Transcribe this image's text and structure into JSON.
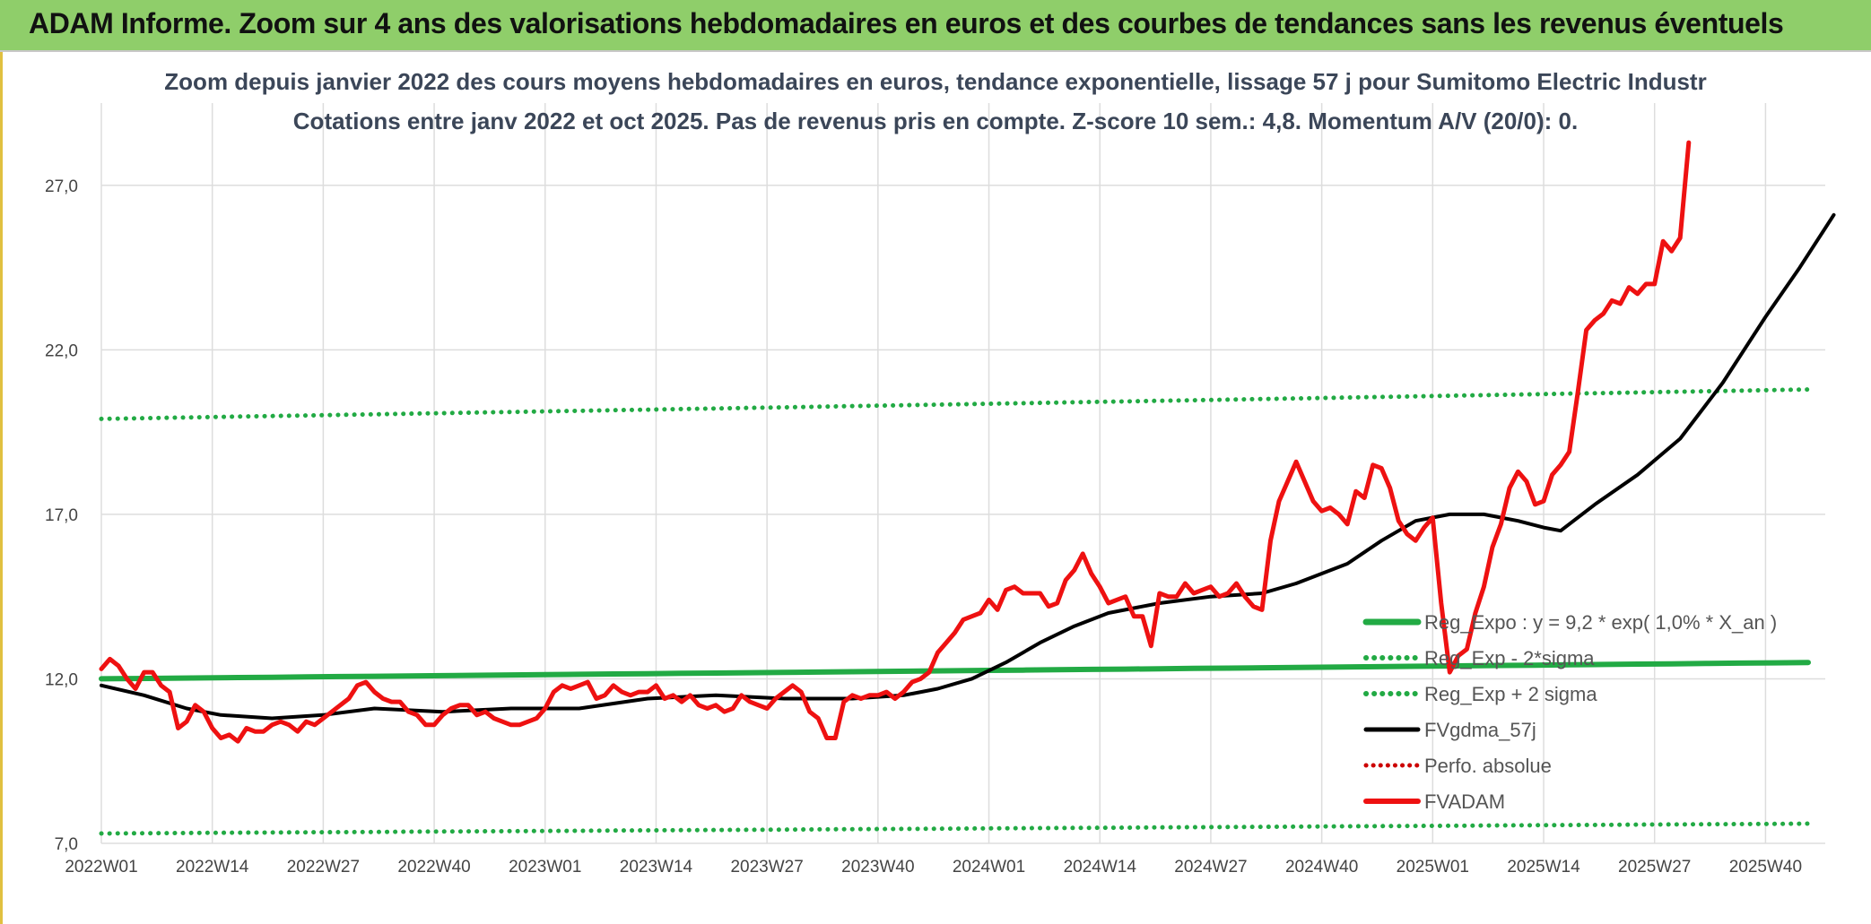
{
  "header": {
    "title": "ADAM Informe. Zoom sur 4 ans des valorisations hebdomadaires en euros et des courbes de tendances sans les revenus éventuels"
  },
  "colors": {
    "banner": "#8fce6a",
    "price": "#ee1111",
    "smooth": "#000000",
    "regression": "#22aa44",
    "band": "#22aa44",
    "perfo": "#cc0000",
    "grid": "#dddddd"
  },
  "chart_data": {
    "type": "line",
    "title_line1": "Zoom depuis janvier 2022 des cours moyens hebdomadaires en euros, tendance exponentielle, lissage 57 j pour Sumitomo Electric Industr",
    "title_line2": "Cotations entre janv 2022 et oct 2025. Pas de revenus pris en compte. Z-score 10 sem.: 4,8. Momentum A/V (20/0): 0.",
    "xlabel": "",
    "ylabel": "",
    "ylim": [
      7,
      29.5
    ],
    "grid": true,
    "legend_position": "right-center",
    "y_ticks": [
      {
        "value": 7,
        "label": "7,0"
      },
      {
        "value": 12,
        "label": "12,0"
      },
      {
        "value": 17,
        "label": "17,0"
      },
      {
        "value": 22,
        "label": "22,0"
      },
      {
        "value": 27,
        "label": "27,0"
      }
    ],
    "x_ticks": [
      {
        "index": 0,
        "label": "2022W01"
      },
      {
        "index": 13,
        "label": "2022W14"
      },
      {
        "index": 26,
        "label": "2022W27"
      },
      {
        "index": 39,
        "label": "2022W40"
      },
      {
        "index": 52,
        "label": "2023W01"
      },
      {
        "index": 65,
        "label": "2023W14"
      },
      {
        "index": 78,
        "label": "2023W27"
      },
      {
        "index": 91,
        "label": "2023W40"
      },
      {
        "index": 104,
        "label": "2024W01"
      },
      {
        "index": 117,
        "label": "2024W14"
      },
      {
        "index": 130,
        "label": "2024W27"
      },
      {
        "index": 143,
        "label": "2024W40"
      },
      {
        "index": 156,
        "label": "2025W01"
      },
      {
        "index": 169,
        "label": "2025W14"
      },
      {
        "index": 182,
        "label": "2025W27"
      },
      {
        "index": 195,
        "label": "2025W40"
      }
    ],
    "n_points": 200,
    "series": [
      {
        "name": "Reg_Expo : y = 9,2 * exp( 1,0% *  X_an )",
        "style": "solid-green",
        "start": 12.0,
        "end": 12.5
      },
      {
        "name": "Reg_Exp - 2*sigma",
        "style": "dotted-green",
        "start": 7.3,
        "end": 7.6
      },
      {
        "name": "Reg_Exp + 2 sigma",
        "style": "dotted-green",
        "start": 19.9,
        "end": 20.8
      },
      {
        "name": "FVgdma_57j",
        "style": "solid-black",
        "points": [
          [
            0,
            11.8
          ],
          [
            5,
            11.5
          ],
          [
            10,
            11.1
          ],
          [
            14,
            10.9
          ],
          [
            20,
            10.8
          ],
          [
            26,
            10.9
          ],
          [
            32,
            11.1
          ],
          [
            40,
            11.0
          ],
          [
            48,
            11.1
          ],
          [
            56,
            11.1
          ],
          [
            64,
            11.4
          ],
          [
            72,
            11.5
          ],
          [
            80,
            11.4
          ],
          [
            88,
            11.4
          ],
          [
            94,
            11.5
          ],
          [
            98,
            11.7
          ],
          [
            102,
            12.0
          ],
          [
            106,
            12.5
          ],
          [
            110,
            13.1
          ],
          [
            114,
            13.6
          ],
          [
            118,
            14.0
          ],
          [
            124,
            14.3
          ],
          [
            130,
            14.5
          ],
          [
            136,
            14.6
          ],
          [
            140,
            14.9
          ],
          [
            146,
            15.5
          ],
          [
            150,
            16.2
          ],
          [
            154,
            16.8
          ],
          [
            158,
            17.0
          ],
          [
            162,
            17.0
          ],
          [
            166,
            16.8
          ],
          [
            169,
            16.6
          ],
          [
            171,
            16.5
          ],
          [
            175,
            17.3
          ],
          [
            180,
            18.2
          ],
          [
            185,
            19.3
          ],
          [
            190,
            21.0
          ],
          [
            195,
            23.0
          ],
          [
            199,
            24.5
          ],
          [
            203,
            26.1
          ]
        ]
      },
      {
        "name": "Perfo. absolue",
        "style": "dotted-red",
        "points": []
      },
      {
        "name": "FVADAM",
        "style": "solid-red",
        "points": [
          [
            0,
            12.3
          ],
          [
            1,
            12.6
          ],
          [
            2,
            12.4
          ],
          [
            3,
            12.0
          ],
          [
            4,
            11.7
          ],
          [
            5,
            12.2
          ],
          [
            6,
            12.2
          ],
          [
            7,
            11.8
          ],
          [
            8,
            11.6
          ],
          [
            9,
            10.5
          ],
          [
            10,
            10.7
          ],
          [
            11,
            11.2
          ],
          [
            12,
            11.0
          ],
          [
            13,
            10.5
          ],
          [
            14,
            10.2
          ],
          [
            15,
            10.3
          ],
          [
            16,
            10.1
          ],
          [
            17,
            10.5
          ],
          [
            18,
            10.4
          ],
          [
            19,
            10.4
          ],
          [
            20,
            10.6
          ],
          [
            21,
            10.7
          ],
          [
            22,
            10.6
          ],
          [
            23,
            10.4
          ],
          [
            24,
            10.7
          ],
          [
            25,
            10.6
          ],
          [
            26,
            10.8
          ],
          [
            27,
            11.0
          ],
          [
            28,
            11.2
          ],
          [
            29,
            11.4
          ],
          [
            30,
            11.8
          ],
          [
            31,
            11.9
          ],
          [
            32,
            11.6
          ],
          [
            33,
            11.4
          ],
          [
            34,
            11.3
          ],
          [
            35,
            11.3
          ],
          [
            36,
            11.0
          ],
          [
            37,
            10.9
          ],
          [
            38,
            10.6
          ],
          [
            39,
            10.6
          ],
          [
            40,
            10.9
          ],
          [
            41,
            11.1
          ],
          [
            42,
            11.2
          ],
          [
            43,
            11.2
          ],
          [
            44,
            10.9
          ],
          [
            45,
            11.0
          ],
          [
            46,
            10.8
          ],
          [
            47,
            10.7
          ],
          [
            48,
            10.6
          ],
          [
            49,
            10.6
          ],
          [
            50,
            10.7
          ],
          [
            51,
            10.8
          ],
          [
            52,
            11.1
          ],
          [
            53,
            11.6
          ],
          [
            54,
            11.8
          ],
          [
            55,
            11.7
          ],
          [
            56,
            11.8
          ],
          [
            57,
            11.9
          ],
          [
            58,
            11.4
          ],
          [
            59,
            11.5
          ],
          [
            60,
            11.8
          ],
          [
            61,
            11.6
          ],
          [
            62,
            11.5
          ],
          [
            63,
            11.6
          ],
          [
            64,
            11.6
          ],
          [
            65,
            11.8
          ],
          [
            66,
            11.4
          ],
          [
            67,
            11.5
          ],
          [
            68,
            11.3
          ],
          [
            69,
            11.5
          ],
          [
            70,
            11.2
          ],
          [
            71,
            11.1
          ],
          [
            72,
            11.2
          ],
          [
            73,
            11.0
          ],
          [
            74,
            11.1
          ],
          [
            75,
            11.5
          ],
          [
            76,
            11.3
          ],
          [
            77,
            11.2
          ],
          [
            78,
            11.1
          ],
          [
            79,
            11.4
          ],
          [
            80,
            11.6
          ],
          [
            81,
            11.8
          ],
          [
            82,
            11.6
          ],
          [
            83,
            11.0
          ],
          [
            84,
            10.8
          ],
          [
            85,
            10.2
          ],
          [
            86,
            10.2
          ],
          [
            87,
            11.3
          ],
          [
            88,
            11.5
          ],
          [
            89,
            11.4
          ],
          [
            90,
            11.5
          ],
          [
            91,
            11.5
          ],
          [
            92,
            11.6
          ],
          [
            93,
            11.4
          ],
          [
            94,
            11.6
          ],
          [
            95,
            11.9
          ],
          [
            96,
            12.0
          ],
          [
            97,
            12.2
          ],
          [
            98,
            12.8
          ],
          [
            99,
            13.1
          ],
          [
            100,
            13.4
          ],
          [
            101,
            13.8
          ],
          [
            102,
            13.9
          ],
          [
            103,
            14.0
          ],
          [
            104,
            14.4
          ],
          [
            105,
            14.1
          ],
          [
            106,
            14.7
          ],
          [
            107,
            14.8
          ],
          [
            108,
            14.6
          ],
          [
            109,
            14.6
          ],
          [
            110,
            14.6
          ],
          [
            111,
            14.2
          ],
          [
            112,
            14.3
          ],
          [
            113,
            15.0
          ],
          [
            114,
            15.3
          ],
          [
            115,
            15.8
          ],
          [
            116,
            15.2
          ],
          [
            117,
            14.8
          ],
          [
            118,
            14.3
          ],
          [
            119,
            14.4
          ],
          [
            120,
            14.5
          ],
          [
            121,
            13.9
          ],
          [
            122,
            13.9
          ],
          [
            123,
            13.0
          ],
          [
            124,
            14.6
          ],
          [
            125,
            14.5
          ],
          [
            126,
            14.5
          ],
          [
            127,
            14.9
          ],
          [
            128,
            14.6
          ],
          [
            129,
            14.7
          ],
          [
            130,
            14.8
          ],
          [
            131,
            14.5
          ],
          [
            132,
            14.6
          ],
          [
            133,
            14.9
          ],
          [
            134,
            14.5
          ],
          [
            135,
            14.2
          ],
          [
            136,
            14.1
          ],
          [
            137,
            16.2
          ],
          [
            138,
            17.4
          ],
          [
            139,
            18.0
          ],
          [
            140,
            18.6
          ],
          [
            141,
            18.0
          ],
          [
            142,
            17.4
          ],
          [
            143,
            17.1
          ],
          [
            144,
            17.2
          ],
          [
            145,
            17.0
          ],
          [
            146,
            16.7
          ],
          [
            147,
            17.7
          ],
          [
            148,
            17.5
          ],
          [
            149,
            18.5
          ],
          [
            150,
            18.4
          ],
          [
            151,
            17.8
          ],
          [
            152,
            16.8
          ],
          [
            153,
            16.4
          ],
          [
            154,
            16.2
          ],
          [
            155,
            16.6
          ],
          [
            156,
            16.9
          ],
          [
            157,
            14.3
          ],
          [
            158,
            12.2
          ],
          [
            159,
            12.7
          ],
          [
            160,
            12.9
          ],
          [
            161,
            14.0
          ],
          [
            162,
            14.8
          ],
          [
            163,
            16.0
          ],
          [
            164,
            16.7
          ],
          [
            165,
            17.8
          ],
          [
            166,
            18.3
          ],
          [
            167,
            18.0
          ],
          [
            168,
            17.3
          ],
          [
            169,
            17.4
          ],
          [
            170,
            18.2
          ],
          [
            171,
            18.5
          ],
          [
            172,
            18.9
          ],
          [
            173,
            20.7
          ],
          [
            174,
            22.6
          ],
          [
            175,
            22.9
          ],
          [
            176,
            23.1
          ],
          [
            177,
            23.5
          ],
          [
            178,
            23.4
          ],
          [
            179,
            23.9
          ],
          [
            180,
            23.7
          ],
          [
            181,
            24.0
          ],
          [
            182,
            24.0
          ],
          [
            183,
            25.3
          ],
          [
            184,
            25.0
          ],
          [
            185,
            25.4
          ],
          [
            186,
            28.3
          ]
        ]
      }
    ]
  }
}
